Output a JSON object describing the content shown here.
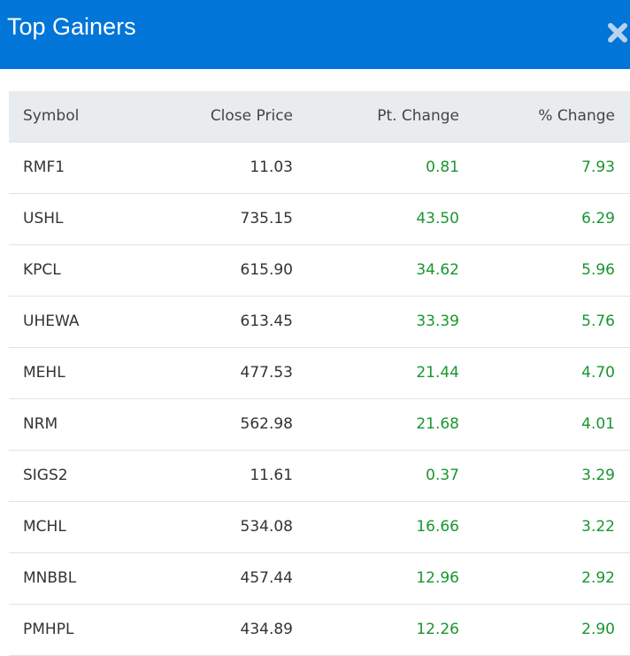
{
  "header": {
    "title": "Top Gainers"
  },
  "table": {
    "columns": [
      "Symbol",
      "Close Price",
      "Pt. Change",
      "% Change"
    ],
    "rows": [
      [
        "RMF1",
        "11.03",
        "0.81",
        "7.93"
      ],
      [
        "USHL",
        "735.15",
        "43.50",
        "6.29"
      ],
      [
        "KPCL",
        "615.90",
        "34.62",
        "5.96"
      ],
      [
        "UHEWA",
        "613.45",
        "33.39",
        "5.76"
      ],
      [
        "MEHL",
        "477.53",
        "21.44",
        "4.70"
      ],
      [
        "NRM",
        "562.98",
        "21.68",
        "4.01"
      ],
      [
        "SIGS2",
        "11.61",
        "0.37",
        "3.29"
      ],
      [
        "MCHL",
        "534.08",
        "16.66",
        "3.22"
      ],
      [
        "MNBBL",
        "457.44",
        "12.96",
        "2.92"
      ],
      [
        "PMHPL",
        "434.89",
        "12.26",
        "2.90"
      ]
    ]
  }
}
